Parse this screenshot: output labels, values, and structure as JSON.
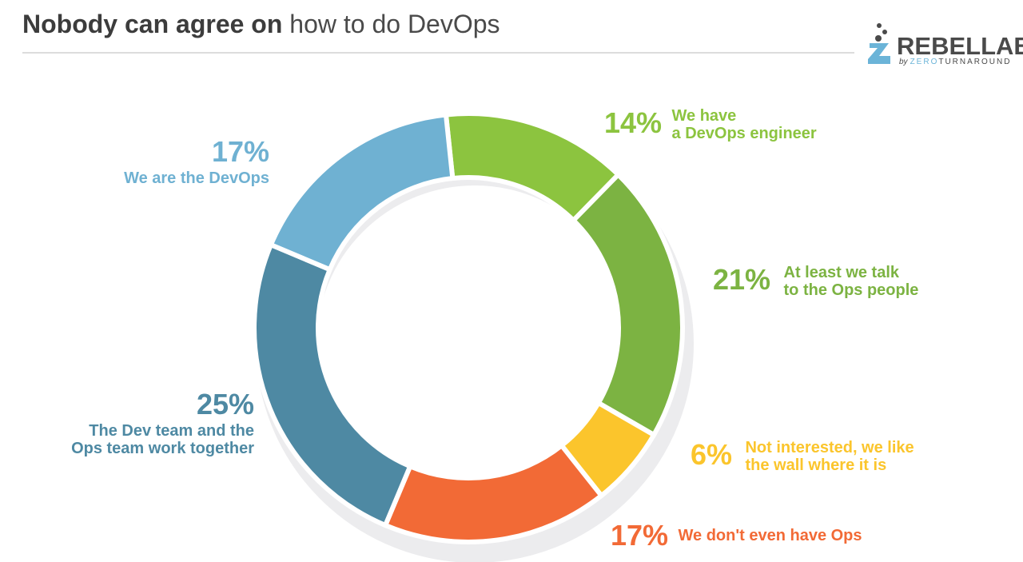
{
  "header": {
    "title_bold": "Nobody can agree on",
    "title_light": "how to do DevOps"
  },
  "logo": {
    "word_rebel": "REBEL",
    "word_labs": "LABS",
    "by": "by",
    "sub_zero": "ZERO",
    "sub_rest": "TURNAROUND"
  },
  "chart_data": {
    "type": "pie",
    "variant": "donut",
    "categories": [
      "We have a DevOps engineer",
      "At least we talk to the Ops people",
      "Not interested, we like the wall where it is",
      "We don't even have Ops",
      "The Dev team and the Ops team work together",
      "We are the DevOps"
    ],
    "values": [
      14,
      21,
      6,
      17,
      25,
      17
    ],
    "value_labels": [
      "14%",
      "21%",
      "6%",
      "17%",
      "25%",
      "17%"
    ],
    "colors": [
      "#8cc43f",
      "#7cb342",
      "#fbc52c",
      "#f26a36",
      "#4e89a3",
      "#6fb1d2"
    ],
    "legend": "none (labels beside slices)"
  },
  "labels": {
    "s0": {
      "pct": "14%",
      "line1": "We have",
      "line2": "a DevOps engineer"
    },
    "s1": {
      "pct": "21%",
      "line1": "At least we talk",
      "line2": "to the Ops people"
    },
    "s2": {
      "pct": "6%",
      "line1": "Not interested, we like",
      "line2": "the wall where it is"
    },
    "s3": {
      "pct": "17%",
      "line1": "We don't even have Ops"
    },
    "s4": {
      "pct": "25%",
      "line1": "The Dev team and the",
      "line2": "Ops team work together"
    },
    "s5": {
      "pct": "17%",
      "line1": "We are the DevOps"
    }
  }
}
